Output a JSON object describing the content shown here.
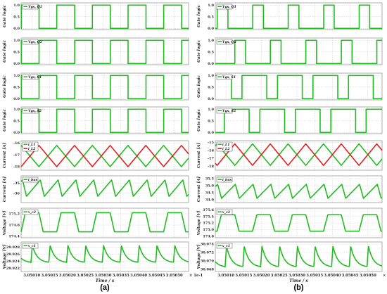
{
  "x_tick_labels": [
    "3.05010",
    "3.05015",
    "3.05020",
    "3.05025",
    "3.05030",
    "3.05035",
    "3.05040",
    "3.05045",
    "3.05050"
  ],
  "x_multiplier": "× 1e-1",
  "x_axis_label": "Time / s",
  "panel_labels": [
    "(a)",
    "(b)"
  ],
  "colors": {
    "green": "#22bb22",
    "red": "#e02020"
  },
  "chart_data": [
    {
      "panel": "(a)",
      "type": "line",
      "x_range": [
        3.05007,
        3.05054
      ],
      "subplots": [
        {
          "ylabel": "Gate logic",
          "yticks": [
            "1.0",
            "0.5",
            "0.0"
          ],
          "ylim": [
            -0.05,
            1.1
          ],
          "series": [
            {
              "name": "Vgs, Q1",
              "color": "green",
              "shape": "pulse",
              "period": 0.0001,
              "duty": 0.5,
              "phase": 0.3,
              "low": 0,
              "high": 1
            }
          ]
        },
        {
          "ylabel": "Gate logic",
          "yticks": [
            "1.0",
            "0.5",
            "0.0"
          ],
          "ylim": [
            -0.05,
            1.1
          ],
          "series": [
            {
              "name": "Vgs, Q2",
              "color": "green",
              "shape": "pulse",
              "period": 0.0001,
              "duty": 0.5,
              "phase": 0.8,
              "low": 0,
              "high": 1
            }
          ]
        },
        {
          "ylabel": "Gate logic",
          "yticks": [
            "1.0",
            "0.5",
            "0.0"
          ],
          "ylim": [
            -0.05,
            1.1
          ],
          "series": [
            {
              "name": "Vgs, S1",
              "color": "green",
              "shape": "pulse",
              "period": 0.0001,
              "duty": 0.5,
              "phase": 0.8,
              "low": 0,
              "high": 1
            }
          ]
        },
        {
          "ylabel": "Gate logic",
          "yticks": [
            "1.0",
            "0.5",
            "0.0"
          ],
          "ylim": [
            -0.05,
            1.1
          ],
          "series": [
            {
              "name": "Vgs, S2",
              "color": "green",
              "shape": "pulse",
              "period": 0.0001,
              "duty": 0.5,
              "phase": 0.3,
              "low": 0,
              "high": 1
            }
          ]
        },
        {
          "ylabel": "Current [A]",
          "yticks": [
            "-16",
            "-17",
            "-18"
          ],
          "ylim": [
            -18.3,
            -15.8
          ],
          "series": [
            {
              "name": "i_L1",
              "color": "green",
              "shape": "triangle",
              "period": 0.0001,
              "phase": 0.3,
              "low": -18.0,
              "high": -16.2
            },
            {
              "name": "i_L2",
              "color": "red",
              "shape": "triangle",
              "period": 0.0001,
              "phase": 0.8,
              "low": -18.0,
              "high": -16.2
            }
          ]
        },
        {
          "ylabel": "Current [A]",
          "yticks": [
            "-35",
            "-36"
          ],
          "ylim": [
            -36.9,
            -34.3
          ],
          "series": [
            {
              "name": "i_bus",
              "color": "green",
              "shape": "sawtooth",
              "period": 5e-05,
              "phase": 0.3,
              "low": -36.3,
              "high": -34.7
            }
          ]
        },
        {
          "ylabel": "Voltage [V]",
          "yticks": [
            "175.2",
            "174.8",
            "174.4"
          ],
          "ylim": [
            174.35,
            175.4
          ],
          "series": [
            {
              "name": "v_c2",
              "color": "green",
              "shape": "trapezoid",
              "period": 0.0001,
              "phase": 0.3,
              "low": 174.56,
              "high": 175.24
            }
          ]
        },
        {
          "ylabel": "Voltage [V]",
          "yticks": [
            "29.928",
            "29.926",
            "29.924",
            "29.922"
          ],
          "ylim": [
            29.921,
            29.9295
          ],
          "series": [
            {
              "name": "v_c1",
              "color": "green",
              "shape": "spike",
              "period": 5e-05,
              "phase": 0.05,
              "low": 29.9235,
              "high": 29.9285
            }
          ]
        }
      ]
    },
    {
      "panel": "(b)",
      "type": "line",
      "x_range": [
        3.05007,
        3.05054
      ],
      "subplots": [
        {
          "ylabel": "Gate logic",
          "yticks": [
            "1.0",
            "0.5",
            "0.0"
          ],
          "ylim": [
            -0.05,
            1.1
          ],
          "series": [
            {
              "name": "Vgs, Q1",
              "color": "green",
              "shape": "pulse",
              "period": 0.0001,
              "duty": 0.3,
              "phase": 0.25,
              "low": 0,
              "high": 1
            }
          ]
        },
        {
          "ylabel": "Gate logic",
          "yticks": [
            "1.0",
            "0.5",
            "0.0"
          ],
          "ylim": [
            -0.05,
            1.1
          ],
          "series": [
            {
              "name": "Vgs, Q2",
              "color": "green",
              "shape": "pulse",
              "period": 0.0001,
              "duty": 0.3,
              "phase": 0.75,
              "low": 0,
              "high": 1
            }
          ]
        },
        {
          "ylabel": "Gate logic",
          "yticks": [
            "1.0",
            "0.5",
            "0.0"
          ],
          "ylim": [
            -0.05,
            1.1
          ],
          "series": [
            {
              "name": "Vgs, S1",
              "color": "green",
              "shape": "pulse",
              "period": 0.0001,
              "duty": 0.7,
              "phase": 0.55,
              "low": 0,
              "high": 1
            }
          ]
        },
        {
          "ylabel": "Gate logic",
          "yticks": [
            "1.0",
            "0.5",
            "0.0"
          ],
          "ylim": [
            -0.05,
            1.1
          ],
          "series": [
            {
              "name": "Vgs, S2",
              "color": "green",
              "shape": "pulse",
              "period": 0.0001,
              "duty": 0.7,
              "phase": 0.05,
              "low": 0,
              "high": 1
            }
          ]
        },
        {
          "ylabel": "Current [A]",
          "yticks": [
            "-15",
            "-16",
            "-17",
            "-18"
          ],
          "ylim": [
            -18.5,
            -14.8
          ],
          "series": [
            {
              "name": "i_L1",
              "color": "green",
              "shape": "triangle",
              "period": 0.0001,
              "phase": 0.25,
              "low": -17.9,
              "high": -15.2
            },
            {
              "name": "i_L2",
              "color": "red",
              "shape": "triangle",
              "period": 0.0001,
              "phase": 0.75,
              "low": -17.9,
              "high": -15.2
            }
          ]
        },
        {
          "ylabel": "Current [A]",
          "yticks": [
            "35.5",
            "35.0",
            "34.5",
            "34.0"
          ],
          "ylim": [
            33.8,
            35.7
          ],
          "series": [
            {
              "name": "i_bus",
              "color": "green",
              "shape": "sawtooth",
              "period": 5e-05,
              "phase": 0.25,
              "low": 34.1,
              "high": 35.1
            }
          ]
        },
        {
          "ylabel": "Voltage [V]",
          "yticks": [
            "175.6",
            "175.4",
            "175.2",
            "175.0",
            "174.8"
          ],
          "ylim": [
            174.75,
            175.65
          ],
          "series": [
            {
              "name": "v_c2",
              "color": "green",
              "shape": "trapezoid",
              "period": 0.0001,
              "phase": 0.25,
              "low": 174.95,
              "high": 175.45
            }
          ]
        },
        {
          "ylabel": "Voltage [V]",
          "yticks": [
            "30.074",
            "30.072",
            "30.070",
            "30.068"
          ],
          "ylim": [
            30.0675,
            30.0745
          ],
          "series": [
            {
              "name": "v_c1",
              "color": "green",
              "shape": "spike",
              "period": 5e-05,
              "phase": 0.05,
              "low": 30.0685,
              "high": 30.0735
            }
          ]
        }
      ]
    }
  ]
}
